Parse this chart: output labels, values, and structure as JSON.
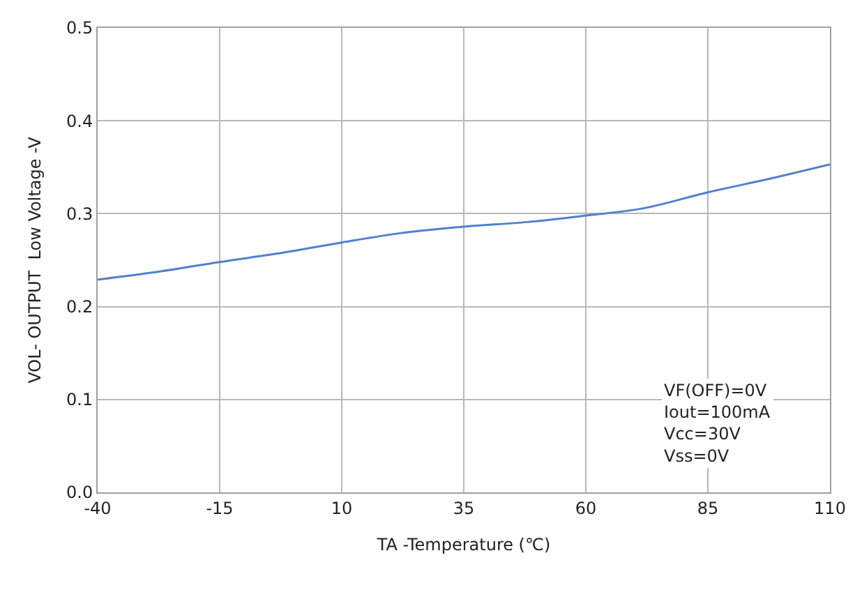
{
  "chart_data": {
    "type": "line",
    "xlabel": "TA -Temperature (℃)",
    "ylabel": "VOL- OUTPUT  Low Voltage -V",
    "x": [
      -40,
      -27,
      -15,
      -2,
      10,
      22,
      35,
      48,
      60,
      72,
      85,
      98,
      110
    ],
    "series": [
      {
        "color": "#4f81d0",
        "values": [
          0.229,
          0.238,
          0.248,
          0.258,
          0.269,
          0.279,
          0.286,
          0.291,
          0.298,
          0.306,
          0.323,
          0.338,
          0.353
        ]
      }
    ],
    "xlim": [
      -40,
      110
    ],
    "xticks": [
      -40,
      -15,
      10,
      35,
      60,
      85,
      110
    ],
    "ylim": [
      0,
      0.5
    ],
    "yticks": [
      {
        "value": 0,
        "label": "0.0"
      },
      {
        "value": 0.1,
        "label": "0.1"
      },
      {
        "value": 0.2,
        "label": "0.2"
      },
      {
        "value": 0.3,
        "label": "0.3"
      },
      {
        "value": 0.4,
        "label": "0.4"
      },
      {
        "value": 0.5,
        "label": "0.5"
      }
    ],
    "grid": true,
    "marker": "none",
    "line_style": "solid",
    "annotations": [
      "VF(OFF)=0V\nIout=100mA\nVcc=30V\nVss=0V"
    ]
  }
}
